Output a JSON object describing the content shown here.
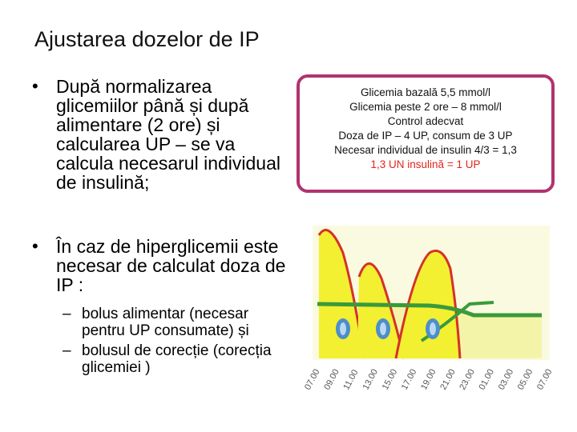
{
  "slide": {
    "title": "Ajustarea dozelor de IP"
  },
  "bullets": [
    {
      "symbol": "•",
      "lines": [
        "După normalizarea",
        "glicemiilor până și după",
        "alimentare (2 ore) și",
        "calcularea UP – se va",
        "calcula necesarul individual",
        "de insulină;"
      ]
    },
    {
      "symbol": "•",
      "lines": [
        "În caz de hiperglicemii este",
        "necesar de calculat doza de",
        "IP :"
      ]
    }
  ],
  "sub_bullets": [
    {
      "symbol": "–",
      "lines": [
        "bolus alimentar (necesar",
        "pentru UP consumate) și"
      ]
    },
    {
      "symbol": "–",
      "lines": [
        "bolusul de corecție (corecția",
        "glicemiei )"
      ]
    }
  ],
  "info_box": {
    "border_color": "#b0336f",
    "lines": [
      "Glicemia bazală 5,5 mmol/l",
      "Glicemia peste 2 ore – 8 mmol/l",
      "Control adecvat",
      "Doza de IP – 4 UP, consum de 3 UP",
      "Necesar individual de insulin 4/3 = 1,3",
      "1,3 UN insulină = 1 UP"
    ],
    "highlight_color": "#e0261c"
  },
  "chart_data": {
    "type": "area",
    "x_tick_labels": [
      "07.00",
      "09.00",
      "11.00",
      "13.00",
      "15.00",
      "17.00",
      "19.00",
      "21.00",
      "23.00",
      "01.00",
      "03.00",
      "05.00",
      "07.00"
    ],
    "meal_peaks": [
      {
        "name": "peak-1",
        "fill": "#f2f030"
      },
      {
        "name": "peak-2",
        "fill": "#f2f030"
      },
      {
        "name": "peak-3",
        "fill": "#f2f030"
      }
    ],
    "basal_fill": "#f4f4a8",
    "curve_color": "#d5312a",
    "basal_line_color": "#3a9a3a",
    "injection_marker_color": "#4d8ecb",
    "legend": "none",
    "grid": false
  }
}
